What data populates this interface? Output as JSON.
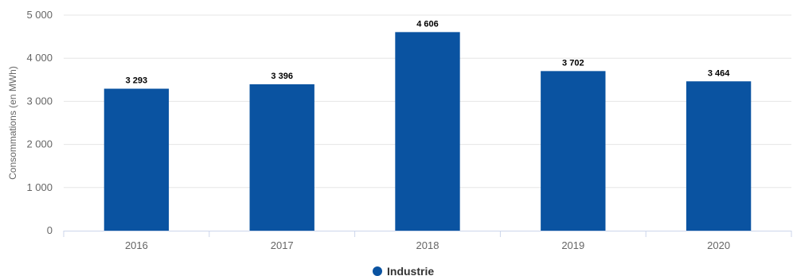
{
  "chart_data": {
    "type": "bar",
    "categories": [
      "2016",
      "2017",
      "2018",
      "2019",
      "2020"
    ],
    "series": [
      {
        "name": "Industrie",
        "color": "#0a53a1",
        "values": [
          3293,
          3396,
          4606,
          3702,
          3464
        ],
        "labels": [
          "3 293",
          "3 396",
          "4 606",
          "3 702",
          "3 464"
        ]
      }
    ],
    "ylabel": "Consommations (en MWh)",
    "ylim": [
      0,
      5000
    ],
    "yticks": [
      0,
      1000,
      2000,
      3000,
      4000,
      5000
    ],
    "ytick_labels": [
      "0",
      "1 000",
      "2 000",
      "3 000",
      "4 000",
      "5 000"
    ],
    "grid": true,
    "legend": "bottom-center"
  }
}
